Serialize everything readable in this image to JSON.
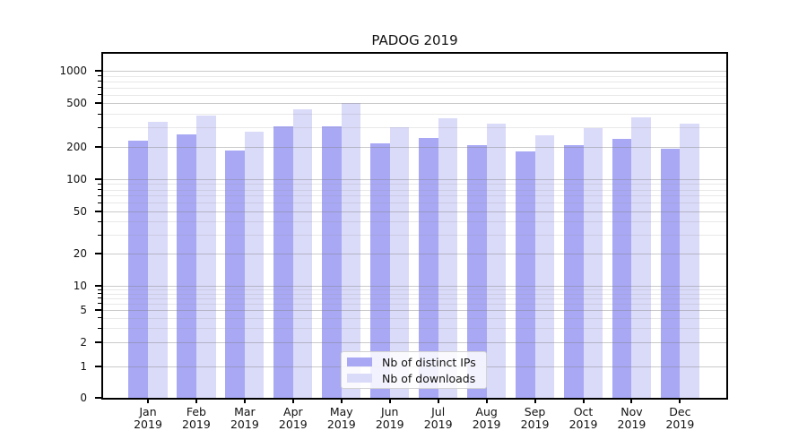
{
  "chart_data": {
    "type": "bar",
    "title": "PADOG 2019",
    "categories": [
      "Jan",
      "Feb",
      "Mar",
      "Apr",
      "May",
      "Jun",
      "Jul",
      "Aug",
      "Sep",
      "Oct",
      "Nov",
      "Dec"
    ],
    "year": "2019",
    "series": [
      {
        "name": "Nb of distinct IPs",
        "color": "#a8a8f5",
        "values": [
          228,
          258,
          185,
          308,
          310,
          215,
          240,
          205,
          181,
          205,
          234,
          191
        ]
      },
      {
        "name": "Nb of downloads",
        "color": "#dadaf9",
        "values": [
          335,
          388,
          272,
          442,
          500,
          300,
          364,
          328,
          254,
          297,
          370,
          328
        ]
      }
    ],
    "yscale": "symlog",
    "yticks": [
      0,
      1,
      2,
      5,
      10,
      20,
      50,
      100,
      200,
      500,
      1000
    ],
    "ylim": [
      0,
      1400
    ],
    "xlabel": "",
    "ylabel": "",
    "grid": "horizontal",
    "legend_position": "lower center"
  }
}
